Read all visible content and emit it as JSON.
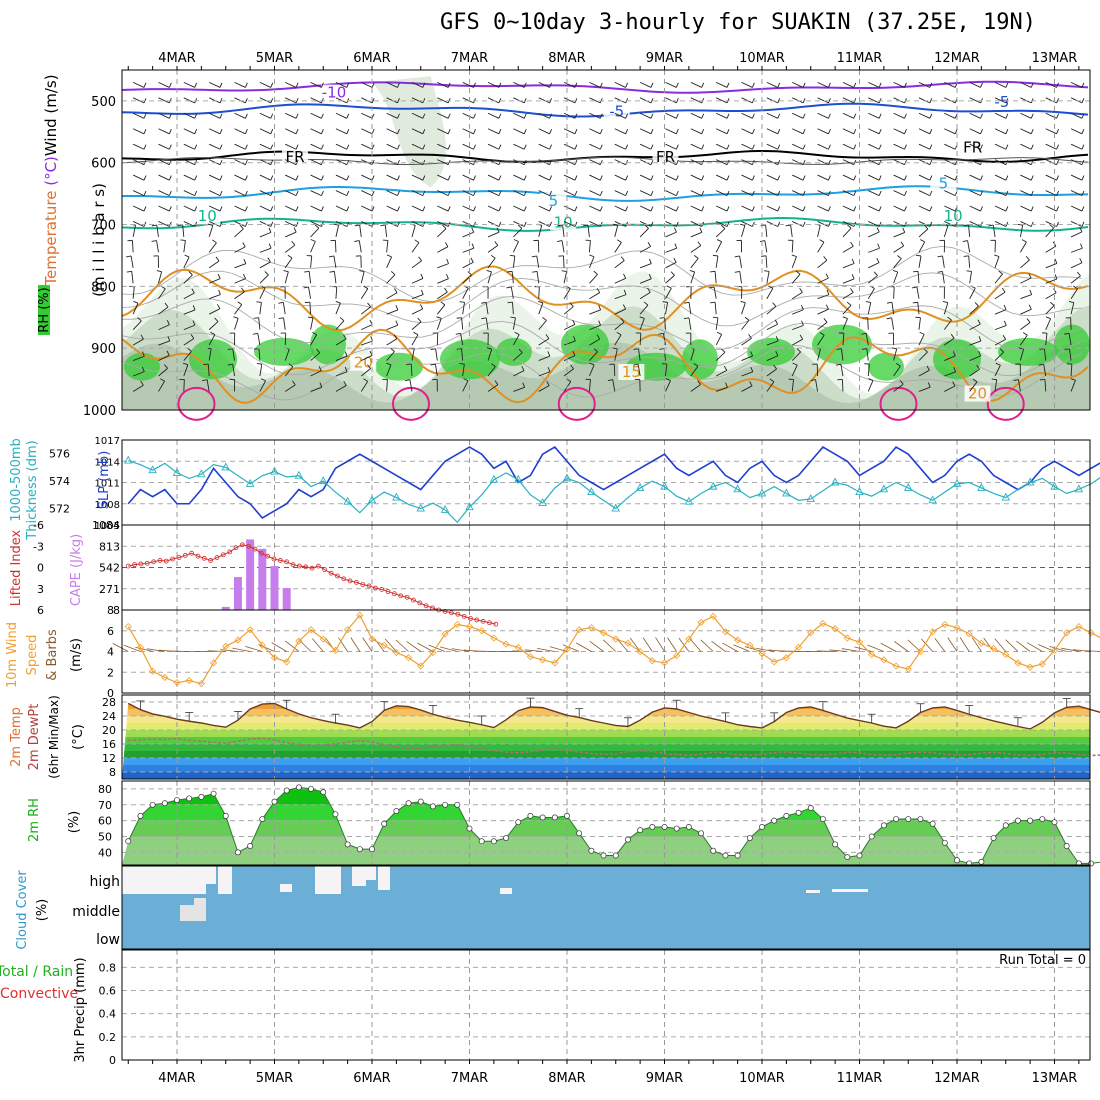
{
  "title": "GFS 0~10day 3-hourly for SUAKIN (37.25E, 19N)",
  "colors": {
    "rh_green": "#33cc33",
    "wind_black": "#000000",
    "temp_purple": "#8a2be2",
    "temp_blue": "#1e4fd0",
    "temp_cyan": "#1ea0e0",
    "temp_teal": "#10b48c",
    "temp_orange": "#e09020",
    "temp_magenta": "#e0208a",
    "slp_blue": "#1f3fd0",
    "thk_cyan": "#2ab0c0",
    "cape_purple": "#c77dec",
    "li_red": "#d23030",
    "wind_orange": "#f0a030",
    "cloud_blue": "#6baed6",
    "rh2m_green": "#00dd00"
  },
  "chart_data": [
    {
      "type": "heatmap",
      "name": "profile",
      "ylabel_parts": [
        "RH (%)",
        "Temperature (°C)",
        "Wind (m/s)"
      ],
      "yaxis_title": "(m i l l i b a r s)",
      "y_ticks": [
        500,
        600,
        700,
        800,
        900,
        1000
      ],
      "ylim": [
        450,
        1000
      ],
      "x_ticks": [
        "4MAR",
        "5MAR",
        "6MAR",
        "7MAR",
        "8MAR",
        "9MAR",
        "10MAR",
        "11MAR",
        "12MAR",
        "13MAR"
      ],
      "contour_labels": [
        {
          "text": "-10",
          "day": 1.6,
          "p": 493,
          "color": "#8a2be2"
        },
        {
          "text": "-5",
          "day": 4.5,
          "p": 524,
          "color": "#1e4fd0"
        },
        {
          "text": "-5",
          "day": 8.45,
          "p": 508,
          "color": "#1e4fd0"
        },
        {
          "text": "FR",
          "day": 1.2,
          "p": 597,
          "color": "#000000"
        },
        {
          "text": "FR",
          "day": 5.0,
          "p": 597,
          "color": "#000000"
        },
        {
          "text": "FR",
          "day": 8.15,
          "p": 582,
          "color": "#000000"
        },
        {
          "text": "5",
          "day": 3.85,
          "p": 668,
          "color": "#1ea0e0"
        },
        {
          "text": "5",
          "day": 7.85,
          "p": 640,
          "color": "#1ea0e0"
        },
        {
          "text": "10",
          "day": 0.3,
          "p": 693,
          "color": "#10b48c"
        },
        {
          "text": "10",
          "day": 3.95,
          "p": 703,
          "color": "#10b48c"
        },
        {
          "text": "10",
          "day": 7.95,
          "p": 693,
          "color": "#10b48c"
        },
        {
          "text": "20",
          "day": 1.9,
          "p": 930,
          "color": "#e09020"
        },
        {
          "text": "15",
          "day": 4.65,
          "p": 945,
          "color": "#e09020"
        },
        {
          "text": "20",
          "day": 8.2,
          "p": 980,
          "color": "#e09020"
        }
      ]
    },
    {
      "type": "line",
      "name": "slp_thickness",
      "ylabel_left": "1000-500mb Thickness (dm)",
      "ylabel_right": "SLP (mb)",
      "left_ticks": [
        572,
        574,
        576
      ],
      "right_ticks": [
        1005,
        1008,
        1011,
        1014,
        1017
      ],
      "slp_ylim": [
        1005,
        1017
      ],
      "series": [
        {
          "name": "SLP",
          "axis": "right",
          "values": [
            1008,
            1010,
            1009,
            1010,
            1008,
            1008,
            1010,
            1013,
            1011,
            1009,
            1008,
            1006,
            1007,
            1008,
            1010,
            1009,
            1010,
            1013,
            1014,
            1015,
            1014,
            1013,
            1012,
            1011,
            1010,
            1012,
            1014,
            1015,
            1016,
            1015,
            1013,
            1014,
            1011,
            1012,
            1015,
            1016,
            1014,
            1012,
            1011,
            1010,
            1011,
            1012,
            1013,
            1014,
            1015,
            1013,
            1012,
            1013,
            1014,
            1012,
            1011,
            1013,
            1014,
            1012,
            1011,
            1012,
            1014,
            1016,
            1015,
            1014,
            1012,
            1013,
            1014,
            1016,
            1015,
            1013,
            1011,
            1012,
            1014,
            1015,
            1014,
            1012,
            1011,
            1010,
            1011,
            1013,
            1014,
            1013,
            1012,
            1013,
            1014,
            1011,
            1010,
            1011,
            1012,
            1014,
            1013,
            1012,
            1010,
            1009,
            1010,
            1012,
            1011,
            1010,
            1010,
            1009,
            1008,
            1009,
            1010,
            1011,
            1013,
            1014,
            1013,
            1012,
            1010,
            1009,
            1009,
            1010,
            1011,
            1012,
            1013,
            1012,
            1011,
            1011,
            1010,
            1009,
            1009,
            1008,
            1008,
            1009,
            1010,
            1011,
            1012,
            1011,
            1010,
            1009,
            1009,
            1008,
            1008,
            1009,
            1010
          ]
        },
        {
          "name": "Thickness",
          "axis": "left",
          "values": [
            575.5,
            575.2,
            574.8,
            575.3,
            574.6,
            574.2,
            574.5,
            575.2,
            575.0,
            574.4,
            573.8,
            574.4,
            574.7,
            574.3,
            574.4,
            573.6,
            574.0,
            573.2,
            572.5,
            571.7,
            572.6,
            573.2,
            572.8,
            572.3,
            572.0,
            572.4,
            571.9,
            571.0,
            572.1,
            573.0,
            574.1,
            574.6,
            574.1,
            573.0,
            572.4,
            573.5,
            574.2,
            573.9,
            573.2,
            572.6,
            572.0,
            572.8,
            573.5,
            574.0,
            573.6,
            572.9,
            572.5,
            573.1,
            573.6,
            573.9,
            573.4,
            572.8,
            573.1,
            573.6,
            573.1,
            572.6,
            572.7,
            573.3,
            573.9,
            573.7,
            573.2,
            572.9,
            573.4,
            573.9,
            573.5,
            573.0,
            572.6,
            573.2,
            573.8,
            573.9,
            573.5,
            573.1,
            572.8,
            573.4,
            573.9,
            574.2,
            573.6,
            573.1,
            573.4,
            573.8,
            574.4,
            574.8,
            574.6,
            574.1,
            573.6,
            573.7,
            574.0,
            574.3,
            574.0,
            573.5,
            573.4,
            573.7,
            574.1,
            574.5,
            574.2,
            574.0,
            574.3,
            574.6,
            575.2,
            575.8,
            576.1,
            575.8,
            575.3,
            575.5,
            575.9,
            575.4,
            575.0,
            574.6,
            574.3,
            574.8,
            575.3
          ]
        }
      ]
    },
    {
      "type": "bar",
      "name": "cape_li",
      "ylabel_left": "Lifted Index",
      "ylabel_right": "CAPE (J/kg)",
      "li_ticks": [
        -6,
        -3,
        0,
        3,
        6
      ],
      "cape_ticks": [
        271,
        542,
        813,
        1084
      ],
      "cape_ylim": [
        0,
        1084
      ],
      "series": [
        {
          "name": "CAPE",
          "x_day": [
            0.5,
            0.625,
            0.75,
            0.875,
            1.0,
            1.125
          ],
          "values": [
            40,
            420,
            900,
            780,
            560,
            280
          ]
        },
        {
          "name": "LI",
          "start_day": -0.5,
          "values": [
            -0.2,
            -0.4,
            -0.5,
            -0.6,
            -0.8,
            -1.0,
            -0.9,
            -1.2,
            -1.4,
            -1.7,
            -2.0,
            -1.6,
            -1.3,
            -1.0,
            -1.4,
            -1.8,
            -2.2,
            -2.8,
            -3.2,
            -3.0,
            -2.6,
            -2.0,
            -1.6,
            -1.2,
            -1.0,
            -0.8,
            -0.4,
            -0.2,
            -0.1,
            0.1,
            -0.2,
            0.3,
            0.8,
            1.2,
            1.6,
            1.9,
            2.1,
            2.4,
            2.6,
            2.9,
            3.1,
            3.4,
            3.7,
            4.0,
            4.2,
            4.6,
            5.0,
            5.4,
            5.7,
            6.0,
            6.2,
            6.4,
            6.6,
            6.9,
            7.2,
            7.4,
            7.6,
            7.8,
            8.0
          ]
        }
      ]
    },
    {
      "type": "line",
      "name": "wind10m",
      "ylabel": "10m Wind Speed & Barbs (m/s)",
      "y_ticks": [
        0,
        2,
        4,
        6,
        8
      ],
      "ylim": [
        0,
        8
      ],
      "series": [
        {
          "name": "Wind Speed",
          "values": [
            6.4,
            4.4,
            2.1,
            1.5,
            1.0,
            1.2,
            0.9,
            2.9,
            4.5,
            5.1,
            6.1,
            4.6,
            3.4,
            3.0,
            5.0,
            6.1,
            5.2,
            4.1,
            6.1,
            7.5,
            5.2,
            4.6,
            3.9,
            3.4,
            2.6,
            3.9,
            5.7,
            6.6,
            6.4,
            6.0,
            5.3,
            4.7,
            4.4,
            3.5,
            3.2,
            2.9,
            4.2,
            6.1,
            6.3,
            5.8,
            5.2,
            4.8,
            4.0,
            3.1,
            2.9,
            3.6,
            5.2,
            6.8,
            7.4,
            5.9,
            5.1,
            4.6,
            3.8,
            3.0,
            3.4,
            4.4,
            5.8,
            6.7,
            6.2,
            5.3,
            4.9,
            3.7,
            3.2,
            2.6,
            2.3,
            4.0,
            5.9,
            6.6,
            6.3,
            5.7,
            4.8,
            4.3,
            3.7,
            2.9,
            2.5,
            2.8,
            4.1,
            5.8,
            6.4,
            5.8,
            5.2,
            4.1,
            3.0,
            2.3,
            2.0,
            2.8,
            4.6,
            6.1,
            6.4,
            5.8,
            4.6,
            3.3,
            2.6,
            2.1,
            2.4,
            3.6,
            5.4,
            6.3,
            6.5,
            5.6,
            4.3,
            3.6,
            2.9,
            2.6,
            3.1,
            4.3,
            5.8,
            6.2,
            5.5,
            4.9
          ]
        }
      ]
    },
    {
      "type": "area",
      "name": "temp2m",
      "ylabel": "2m Temp 2m DewPt (6hr Min/Max) (°C)",
      "y_ticks": [
        8,
        12,
        16,
        20,
        24,
        28
      ],
      "ylim": [
        6,
        30
      ],
      "series": [
        {
          "name": "2m Temp",
          "values": [
            27.6,
            25.8,
            24.6,
            23.9,
            23.1,
            22.5,
            22.0,
            21.3,
            20.8,
            22.8,
            26.0,
            27.4,
            27.6,
            26.0,
            24.6,
            23.5,
            22.7,
            22.0,
            21.4,
            20.6,
            22.4,
            25.6,
            26.9,
            26.7,
            25.7,
            24.5,
            23.6,
            22.8,
            22.2,
            21.5,
            20.7,
            22.9,
            25.5,
            26.6,
            26.4,
            25.3,
            24.2,
            23.6,
            22.7,
            22.0,
            21.3,
            21.0,
            22.8,
            25.1,
            26.3,
            26.0,
            25.0,
            24.0,
            23.2,
            22.4,
            21.5,
            21.0,
            20.6,
            22.4,
            25.0,
            26.3,
            26.6,
            25.6,
            24.5,
            23.4,
            22.7,
            22.0,
            21.1,
            20.6,
            22.5,
            25.0,
            26.3,
            26.6,
            25.6,
            24.5,
            23.5,
            22.6,
            21.8,
            21.0,
            20.3,
            22.2,
            24.9,
            26.5,
            26.8,
            25.8,
            24.8,
            23.7,
            22.7,
            21.8,
            21.0,
            20.4,
            22.0,
            24.5,
            26.1,
            26.4,
            25.6,
            24.5,
            23.4,
            22.5,
            21.6,
            20.8,
            20.0,
            21.8,
            24.6,
            26.4,
            26.7,
            25.6,
            24.3,
            23.2,
            22.3,
            21.6,
            20.8,
            20.1,
            21.7,
            23.2
          ]
        },
        {
          "name": "2m DewPt",
          "values": [
            17.0,
            17.2,
            17.4,
            17.3,
            17.5,
            17.1,
            16.8,
            16.5,
            16.2,
            16.8,
            17.4,
            17.6,
            17.2,
            16.4,
            15.9,
            15.6,
            15.7,
            16.0,
            16.5,
            17.0,
            16.6,
            15.8,
            15.2,
            14.8,
            14.8,
            15.3,
            15.6,
            15.8,
            15.3,
            14.6,
            14.1,
            13.7,
            13.5,
            13.8,
            14.3,
            14.6,
            14.2,
            13.7,
            13.3,
            13.1,
            13.2,
            13.8,
            14.1,
            13.9,
            13.2,
            13.0,
            12.8,
            13.1,
            13.6,
            13.4,
            13.0,
            12.8,
            13.1,
            13.5,
            13.7,
            13.4,
            13.0,
            12.9,
            13.2,
            13.6,
            13.5,
            13.0,
            12.8,
            13.0,
            13.4,
            13.7,
            13.5,
            13.1,
            12.8,
            13.0,
            13.4,
            13.6,
            13.3,
            12.9,
            12.8,
            13.1,
            13.5,
            13.4,
            13.0,
            12.7,
            12.9,
            13.3,
            13.5,
            13.2,
            12.8,
            12.8,
            13.1,
            13.4,
            13.3,
            12.9,
            12.7,
            13.0,
            13.3,
            13.5,
            13.2,
            12.8,
            12.7,
            13.1,
            13.4,
            13.3,
            13.0,
            12.8,
            13.0,
            13.3,
            13.2,
            12.9,
            12.8,
            13.0
          ]
        }
      ]
    },
    {
      "type": "area",
      "name": "rh2m",
      "ylabel": "2m RH (%)",
      "y_ticks": [
        40,
        50,
        60,
        70,
        80
      ],
      "ylim": [
        32,
        85
      ],
      "series": [
        {
          "name": "2m RH",
          "values": [
            47,
            63,
            70,
            71,
            73,
            74,
            75,
            77,
            63,
            40,
            44,
            61,
            72,
            79,
            81,
            80,
            78,
            64,
            45,
            42,
            42,
            58,
            66,
            71,
            72,
            69,
            70,
            70,
            55,
            47,
            47,
            49,
            59,
            63,
            62,
            62,
            63,
            52,
            41,
            38,
            38,
            48,
            54,
            56,
            56,
            55,
            56,
            52,
            41,
            38,
            38,
            49,
            56,
            60,
            63,
            65,
            68,
            61,
            45,
            37,
            38,
            50,
            57,
            61,
            61,
            61,
            58,
            46,
            35,
            33,
            34,
            49,
            57,
            60,
            60,
            61,
            59,
            44,
            33,
            33,
            34,
            48,
            56,
            59,
            58,
            55,
            50,
            41,
            35,
            34,
            35,
            50,
            61,
            64,
            64,
            66,
            60,
            45,
            36,
            35,
            36,
            49,
            60,
            62,
            62,
            56,
            50,
            43,
            40,
            39
          ]
        }
      ]
    },
    {
      "type": "heatmap",
      "name": "cloud",
      "ylabel": "Cloud Cover (%)",
      "levels": [
        "high",
        "middle",
        "low"
      ]
    },
    {
      "type": "bar",
      "name": "precip",
      "ylabel_left": "Total / Rain",
      "ylabel_right": "Convective",
      "ylabel": "3hr Precip (mm)",
      "run_total": "Run Total = 0",
      "y_ticks": [
        0,
        0.2,
        0.4,
        0.6,
        0.8
      ],
      "ylim": [
        0,
        0.95
      ],
      "values": []
    }
  ]
}
